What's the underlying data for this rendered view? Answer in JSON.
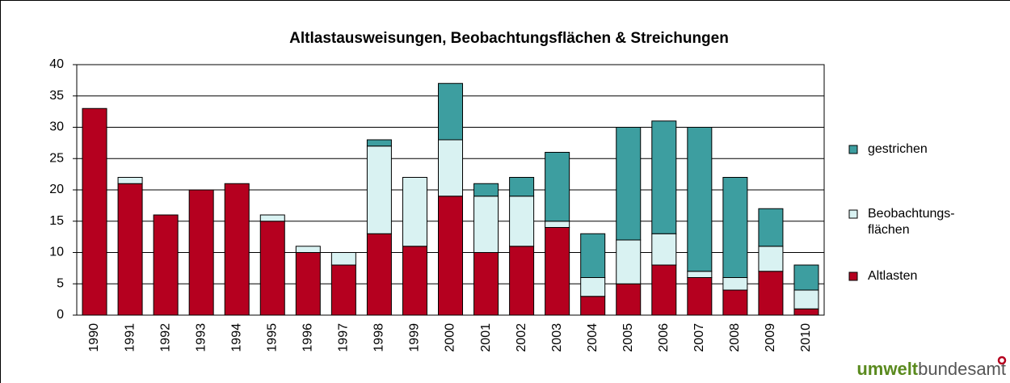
{
  "chart_data": {
    "type": "stacked_bar",
    "title": "Altlastausweisungen, Beobachtungsflächen & Streichungen",
    "categories": [
      "1990",
      "1991",
      "1992",
      "1993",
      "1994",
      "1995",
      "1996",
      "1997",
      "1998",
      "1999",
      "2000",
      "2001",
      "2002",
      "2003",
      "2004",
      "2005",
      "2006",
      "2007",
      "2008",
      "2009",
      "2010"
    ],
    "series": [
      {
        "name": "Altlasten",
        "color": "#b5001f",
        "values": [
          33,
          21,
          16,
          20,
          21,
          15,
          10,
          8,
          13,
          11,
          19,
          10,
          11,
          14,
          3,
          5,
          8,
          6,
          4,
          7,
          1
        ]
      },
      {
        "name": "Beobachtungs-\nflächen",
        "color": "#d9f2f2",
        "values": [
          0,
          1,
          0,
          0,
          0,
          1,
          1,
          2,
          14,
          11,
          9,
          9,
          8,
          1,
          3,
          7,
          5,
          1,
          2,
          4,
          3
        ]
      },
      {
        "name": "gestrichen",
        "color": "#3d9ea0",
        "values": [
          0,
          0,
          0,
          0,
          0,
          0,
          0,
          0,
          1,
          0,
          9,
          2,
          3,
          11,
          7,
          18,
          18,
          23,
          16,
          6,
          4
        ]
      }
    ],
    "ylim": [
      0,
      40
    ],
    "yticks": [
      0,
      5,
      10,
      15,
      20,
      25,
      30,
      35,
      40
    ],
    "grid": true,
    "legend": "right"
  },
  "logo": {
    "bold": "umwelt",
    "rest": "bundesamt"
  }
}
